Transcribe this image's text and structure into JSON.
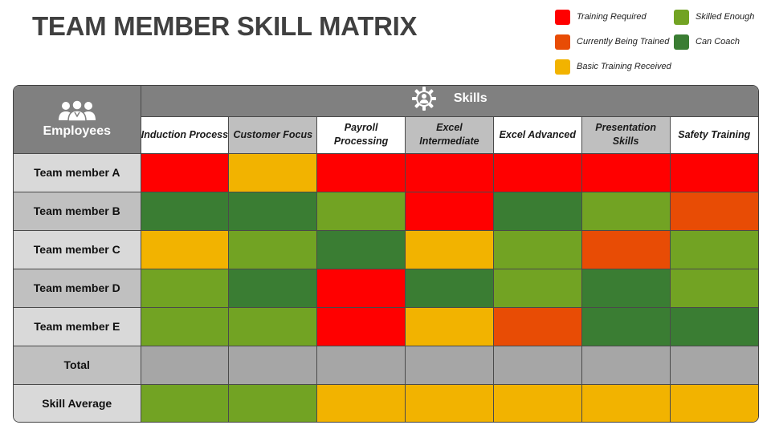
{
  "title": "TEAM MEMBER SKILL MATRIX",
  "colors": {
    "training_required": "#ff0000",
    "currently_being_trained": "#e84c05",
    "basic_training_received": "#f2b300",
    "skilled_enough": "#72a323",
    "can_coach": "#3a7d33",
    "total": "#a6a6a6",
    "header_gray": "#808080"
  },
  "legend": [
    {
      "key": "training_required",
      "label": "Training Required",
      "color": "#ff0000",
      "icon": "red-square"
    },
    {
      "key": "currently_being_trained",
      "label": "Currently Being Trained",
      "color": "#e84c05",
      "icon": "orange-square"
    },
    {
      "key": "basic_training_received",
      "label": "Basic Training Received",
      "color": "#f2b300",
      "icon": "yellow-square"
    },
    {
      "key": "skilled_enough",
      "label": "Skilled Enough",
      "color": "#72a323",
      "icon": "light-green-square"
    },
    {
      "key": "can_coach",
      "label": "Can Coach",
      "color": "#3a7d33",
      "icon": "dark-green-square"
    }
  ],
  "table": {
    "employees_header": "Employees",
    "employees_icon": "people-icon",
    "skills_header": "Skills",
    "skills_icon": "gear-person-icon",
    "skills": [
      "Induction Process",
      "Customer Focus",
      "Payroll Processing",
      "Excel Intermediate",
      "Excel Advanced",
      "Presentation Skills",
      "Safety Training"
    ],
    "rows": [
      {
        "label": "Team member A",
        "levels": [
          "training_required",
          "basic_training_received",
          "training_required",
          "training_required",
          "training_required",
          "training_required",
          "training_required"
        ]
      },
      {
        "label": "Team member B",
        "levels": [
          "can_coach",
          "can_coach",
          "skilled_enough",
          "training_required",
          "can_coach",
          "skilled_enough",
          "currently_being_trained"
        ]
      },
      {
        "label": "Team member C",
        "levels": [
          "basic_training_received",
          "skilled_enough",
          "can_coach",
          "basic_training_received",
          "skilled_enough",
          "currently_being_trained",
          "skilled_enough"
        ]
      },
      {
        "label": "Team member D",
        "levels": [
          "skilled_enough",
          "can_coach",
          "training_required",
          "can_coach",
          "skilled_enough",
          "can_coach",
          "skilled_enough"
        ]
      },
      {
        "label": "Team member E",
        "levels": [
          "skilled_enough",
          "skilled_enough",
          "training_required",
          "basic_training_received",
          "currently_being_trained",
          "can_coach",
          "can_coach"
        ]
      },
      {
        "label": "Total",
        "levels": [
          "total",
          "total",
          "total",
          "total",
          "total",
          "total",
          "total"
        ]
      },
      {
        "label": "Skill Average",
        "levels": [
          "skilled_enough",
          "skilled_enough",
          "basic_training_received",
          "basic_training_received",
          "basic_training_received",
          "basic_training_received",
          "basic_training_received"
        ]
      }
    ]
  }
}
